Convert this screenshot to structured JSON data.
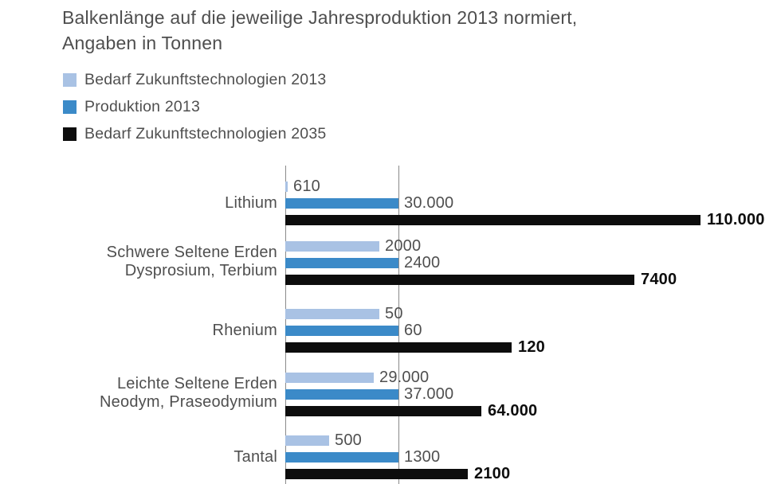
{
  "title": {
    "line1": "Balkenlänge auf die jeweilige Jahresproduktion 2013 normiert,",
    "line2": "Angaben in Tonnen"
  },
  "chart_data": {
    "type": "bar",
    "orientation": "horizontal",
    "title": "Balkenlänge auf die jeweilige Jahresproduktion 2013 normiert, Angaben in Tonnen",
    "unit": "Tonnen",
    "normalization": "Balkenlänge auf Produktion 2013 normiert (Produktion-2013-Balken enden an der Referenzlinie)",
    "legend_position": "top-left",
    "grid": "zwei vertikale Referenzlinien",
    "series": [
      {
        "name": "Bedarf Zukunftstechnologien 2013",
        "color": "#a9c2e4"
      },
      {
        "name": "Produktion 2013",
        "color": "#3b8ac8"
      },
      {
        "name": "Bedarf Zukunftstechnologien 2035",
        "color": "#0d0d0d"
      }
    ],
    "categories": [
      {
        "label_lines": [
          "Lithium"
        ],
        "values": [
          610,
          30000,
          110000
        ],
        "value_labels": [
          "610",
          "30.000",
          "110.000"
        ]
      },
      {
        "label_lines": [
          "Schwere Seltene Erden",
          "Dysprosium, Terbium"
        ],
        "values": [
          2000,
          2400,
          7400
        ],
        "value_labels": [
          "2000",
          "2400",
          "7400"
        ]
      },
      {
        "label_lines": [
          "Rhenium"
        ],
        "values": [
          50,
          60,
          120
        ],
        "value_labels": [
          "50",
          "60",
          "120"
        ]
      },
      {
        "label_lines": [
          "Leichte Seltene Erden",
          "Neodym, Praseodymium"
        ],
        "values": [
          29000,
          37000,
          64000
        ],
        "value_labels": [
          "29.000",
          "37.000",
          "64.000"
        ]
      },
      {
        "label_lines": [
          "Tantal"
        ],
        "values": [
          500,
          1300,
          2100
        ],
        "value_labels": [
          "500",
          "1300",
          "2100"
        ]
      }
    ]
  }
}
